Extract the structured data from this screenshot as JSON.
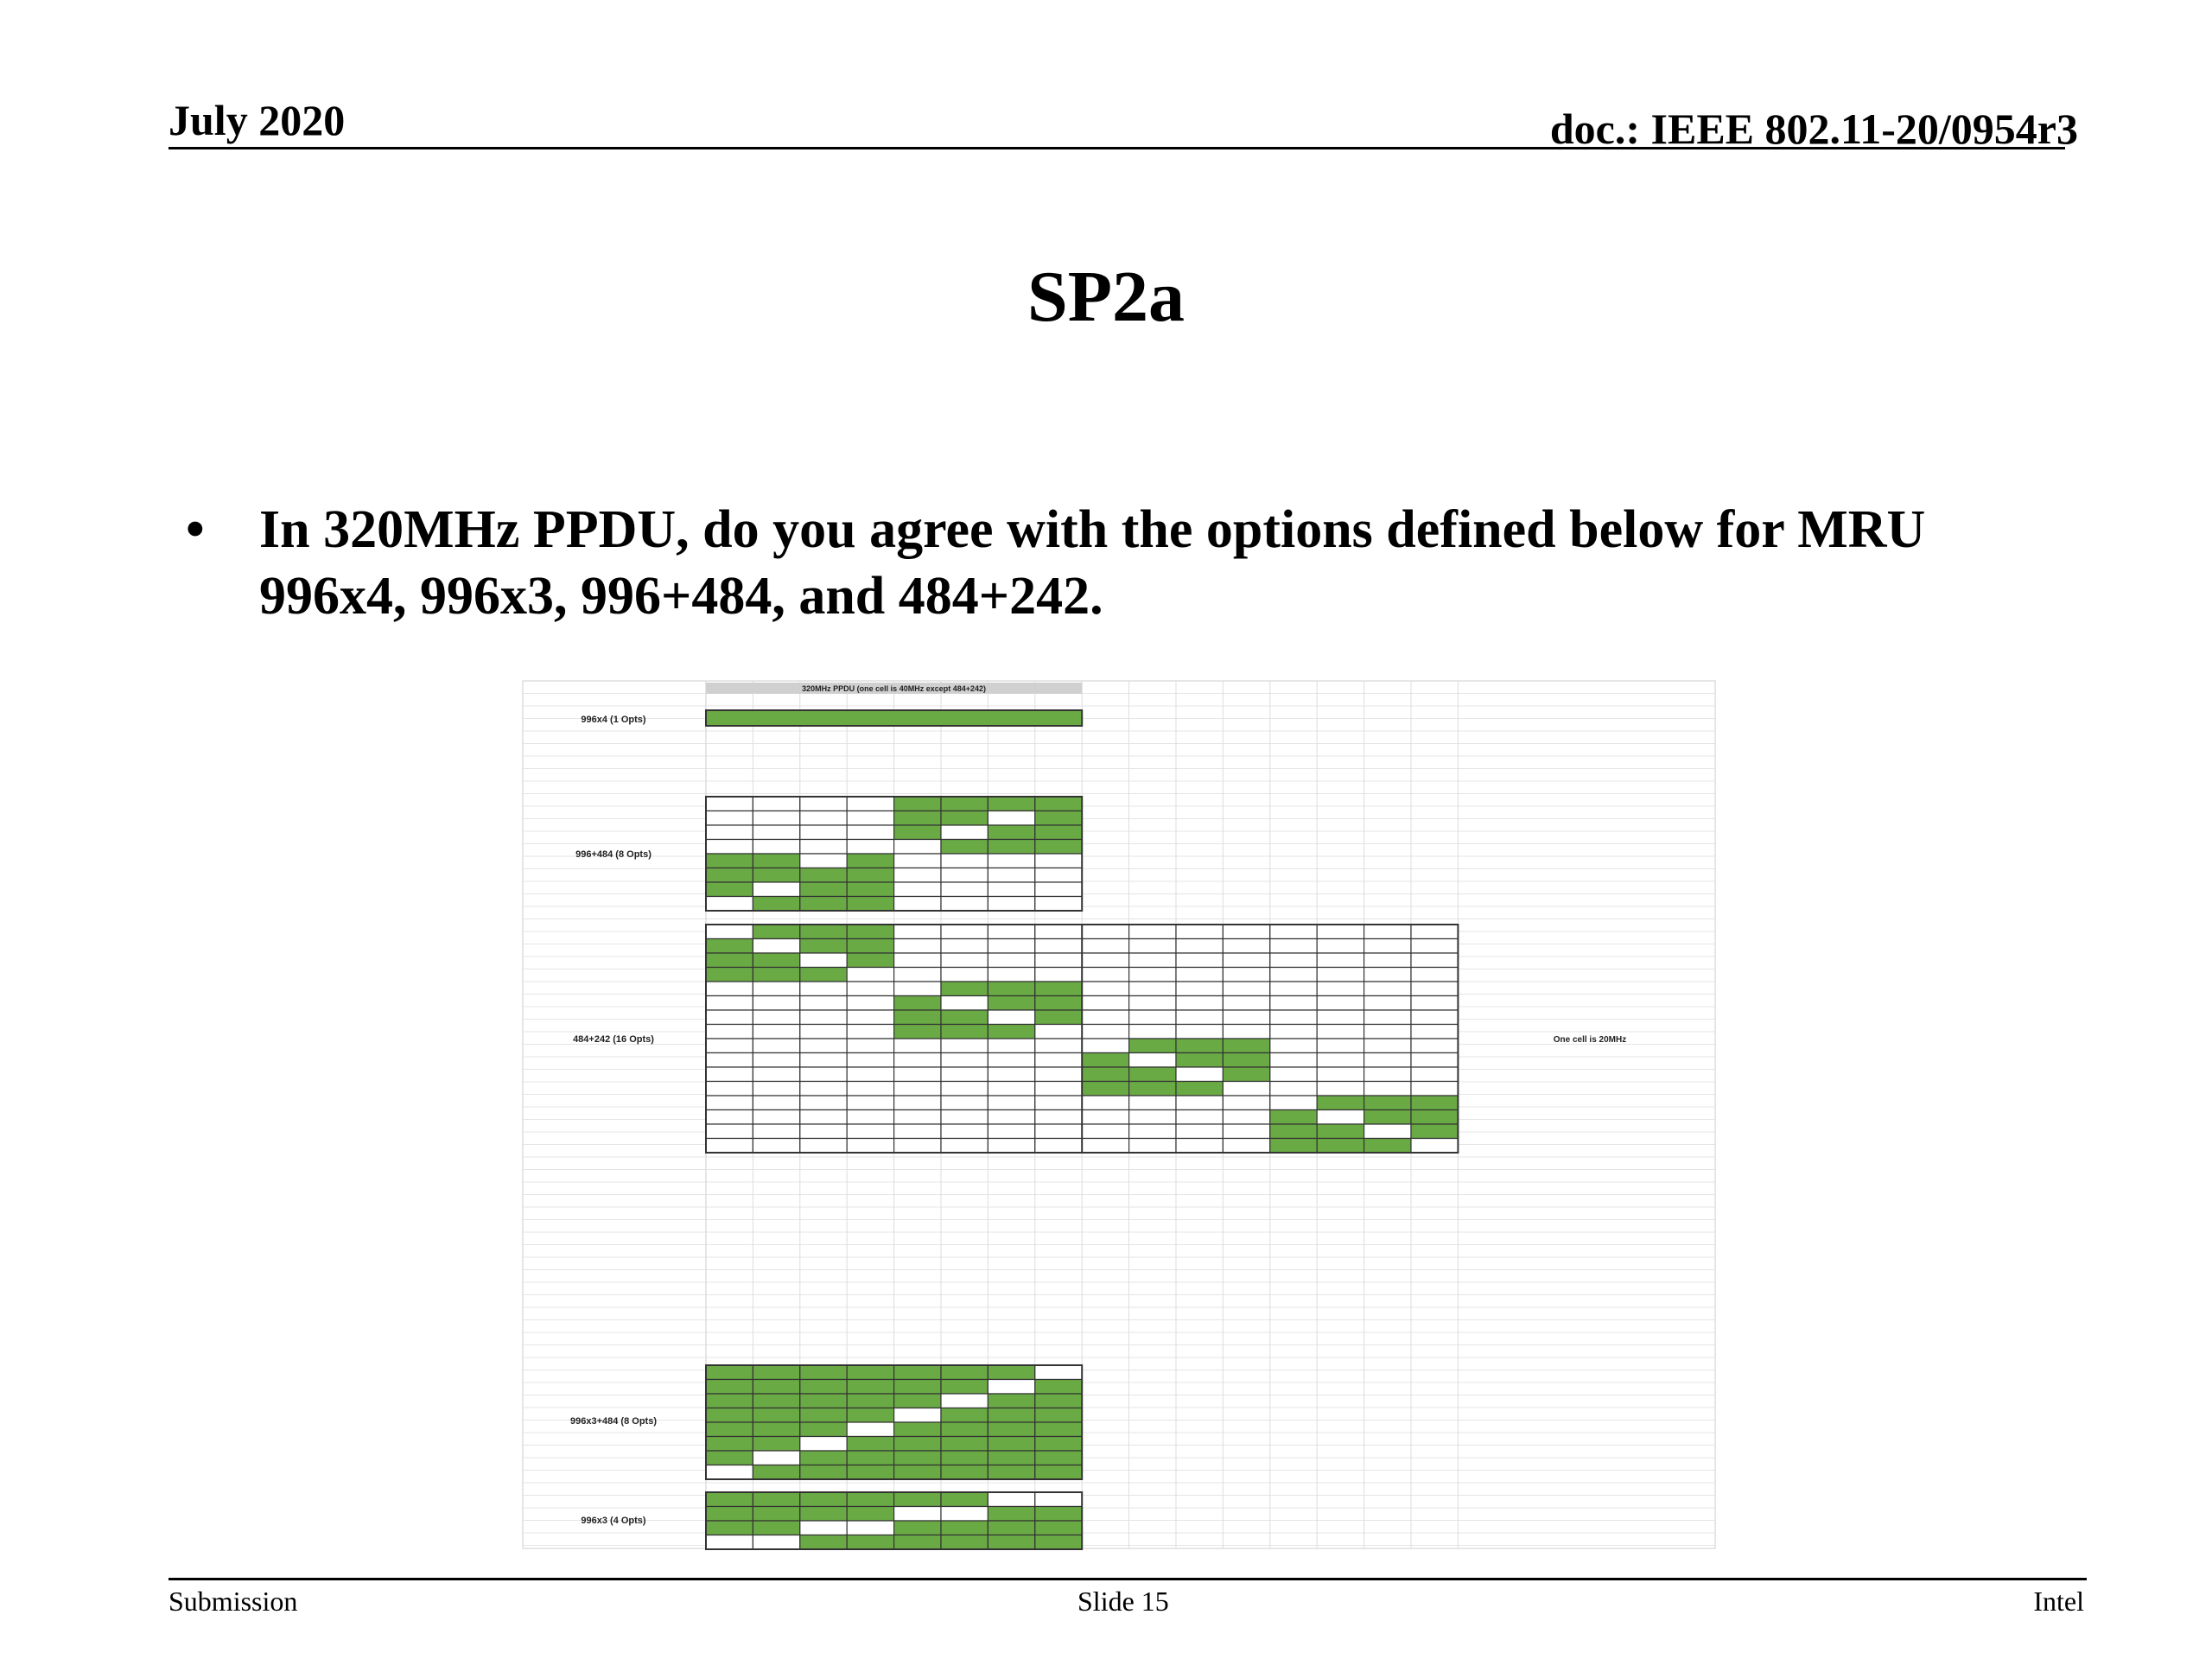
{
  "header": {
    "date": "July 2020",
    "doc_id": "doc.: IEEE 802.11-20/0954r3"
  },
  "slide": {
    "title": "SP2a",
    "bullet": "In 320MHz PPDU, do you agree with the options defined below for MRU 996x4, 996x3, 996+484, and 484+242."
  },
  "figure": {
    "header_label": "320MHz PPDU (one cell is 40MHz except 484+242)",
    "side_note": "One cell is 20MHz",
    "colors": {
      "fill": "#6aaa45",
      "grid": "#dddddd",
      "border": "#333333",
      "header_bar": "#d0d0d0"
    },
    "groups": [
      {
        "label": "996x4 (1 Opts)"
      },
      {
        "label": "996+484 (8 Opts)"
      },
      {
        "label": "484+242 (16 Opts)"
      },
      {
        "label": "996x3+484 (8 Opts)"
      },
      {
        "label": "996x3 (4 Opts)"
      }
    ]
  },
  "footer": {
    "left": "Submission",
    "center": "Slide 15",
    "right": "Intel"
  }
}
